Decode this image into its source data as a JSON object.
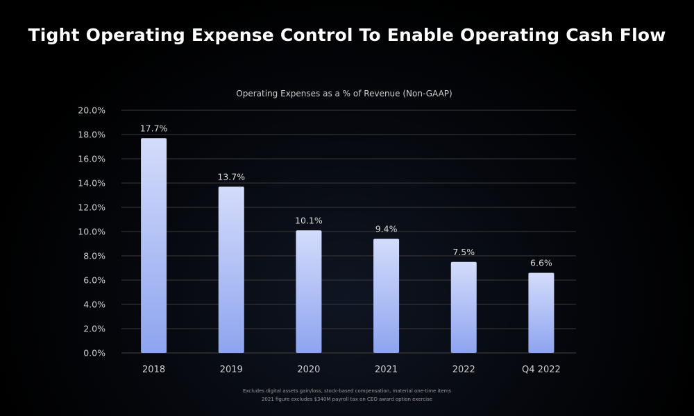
{
  "slide": {
    "title": "Tight Operating Expense Control To Enable Operating Cash Flow",
    "footnotes": [
      "Excludes digital assets gain/loss, stock-based compensation, material one-time items",
      "2021 figure excludes $340M payroll tax on CEO award option exercise"
    ]
  },
  "colors": {
    "background": "#000000",
    "bar_top": "#d4dcfb",
    "bar_bottom": "#8ea4ef",
    "grid": "#3a3a3a",
    "axis_text": "#cfcfcf",
    "label_text": "#d8d8d8"
  },
  "chart_data": {
    "type": "bar",
    "title": "Operating Expenses as a % of Revenue (Non-GAAP)",
    "categories": [
      "2018",
      "2019",
      "2020",
      "2021",
      "2022",
      "Q4 2022"
    ],
    "values": [
      17.7,
      13.7,
      10.1,
      9.4,
      7.5,
      6.6
    ],
    "data_labels": [
      "17.7%",
      "13.7%",
      "10.1%",
      "9.4%",
      "7.5%",
      "6.6%"
    ],
    "y_ticks": [
      "0.0%",
      "2.0%",
      "4.0%",
      "6.0%",
      "8.0%",
      "10.0%",
      "12.0%",
      "14.0%",
      "16.0%",
      "18.0%",
      "20.0%"
    ],
    "ylim": [
      0,
      20
    ],
    "grid": true,
    "legend": "none"
  }
}
